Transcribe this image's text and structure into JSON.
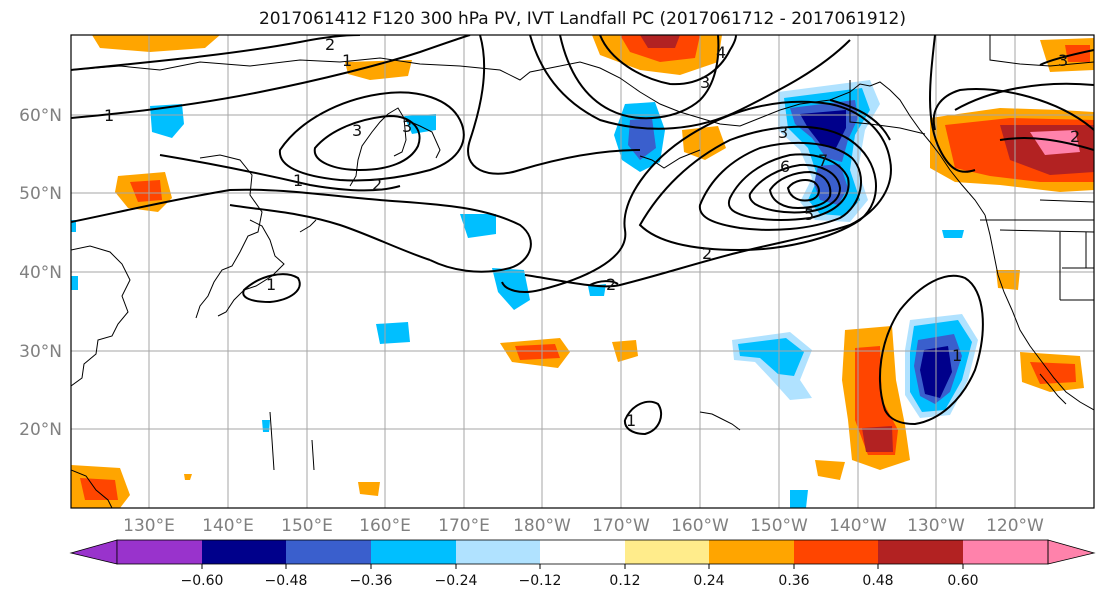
{
  "title": "2017061412 F120 300 hPa PV, IVT Landfall PC (2017061712 - 2017061912)",
  "map": {
    "projection": "equirectangular",
    "lon_ticks": [
      "130°E",
      "140°E",
      "150°E",
      "160°E",
      "170°E",
      "180°W",
      "170°W",
      "160°W",
      "150°W",
      "140°W",
      "130°W",
      "120°W"
    ],
    "lat_ticks": [
      "60°N",
      "50°N",
      "40°N",
      "30°N",
      "20°N"
    ],
    "gridlines": true,
    "coastlines": true
  },
  "colorbar": {
    "extend": "both",
    "colors": [
      "#9933cc",
      "#00008b",
      "#3a5fcd",
      "#00bfff",
      "#b0e2ff",
      "#ffffff",
      "#ffffff",
      "#ffec8b",
      "#ffa500",
      "#ff4500",
      "#b22222",
      "#ff82ab"
    ],
    "tick_labels": [
      "−0.60",
      "−0.48",
      "−0.36",
      "−0.24",
      "−0.12",
      "0.12",
      "0.24",
      "0.36",
      "0.48",
      "0.60"
    ]
  },
  "contour_labels": [
    "2",
    "1",
    "3",
    "1",
    "2",
    "1",
    "1",
    "2",
    "3",
    "2",
    "1",
    "3",
    "6",
    "7",
    "5",
    "3",
    "2",
    "1",
    "4",
    "3"
  ]
}
